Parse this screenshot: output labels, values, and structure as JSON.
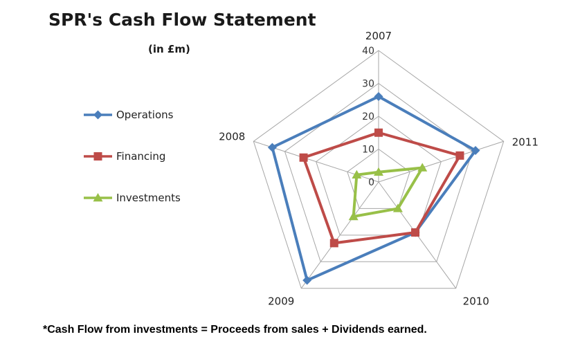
{
  "title": "SPR's Cash Flow Statement",
  "subtitle": "(in £m)",
  "footnote": "*Cash Flow from investments = Proceeds from sales + Dividends earned.",
  "chart_data": {
    "type": "radar",
    "categories": [
      "2007",
      "2011",
      "2010",
      "2009",
      "2008"
    ],
    "rlim": [
      0,
      40
    ],
    "ticks": [
      0,
      10,
      20,
      30,
      40
    ],
    "grid": true,
    "legend": "left",
    "series": [
      {
        "name": "Operations",
        "values": [
          26,
          31,
          19,
          37,
          34
        ],
        "color": "#4a7ebb",
        "marker": "diamond"
      },
      {
        "name": "Financing",
        "values": [
          15,
          26,
          19,
          23,
          24
        ],
        "color": "#be4b48",
        "marker": "square"
      },
      {
        "name": "Investments",
        "values": [
          3,
          14,
          10,
          13,
          7
        ],
        "color": "#98c048",
        "marker": "triangle"
      }
    ]
  }
}
